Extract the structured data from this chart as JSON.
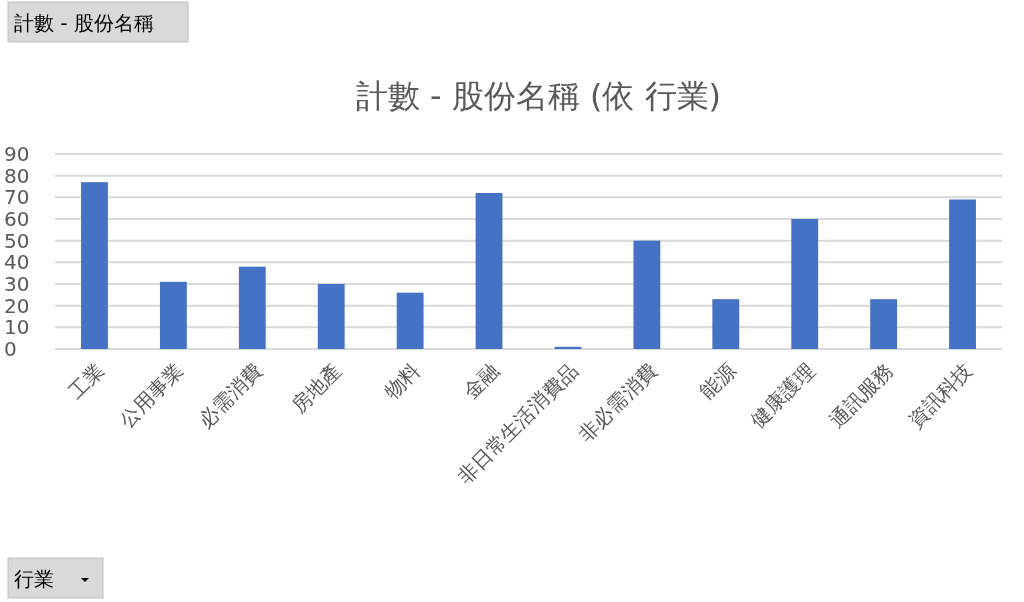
{
  "chart_data": {
    "type": "bar",
    "title": "計數 - 股份名稱 (依 行業)",
    "categories": [
      "工業",
      "公用事業",
      "必需消費",
      "房地產",
      "物料",
      "金融",
      "非日常生活消費品",
      "非必需消費",
      "能源",
      "健康護理",
      "通訊服務",
      "資訊科技"
    ],
    "values": [
      77,
      31,
      38,
      30,
      26,
      72,
      1,
      50,
      23,
      60,
      23,
      69
    ],
    "color": "#4472c4",
    "ylim": [
      0,
      90
    ],
    "yticks": [
      0,
      10,
      20,
      30,
      40,
      50,
      60,
      70,
      80,
      90
    ],
    "grid": "y",
    "annotations": [
      "計數 - 股份名稱",
      "行業"
    ]
  }
}
